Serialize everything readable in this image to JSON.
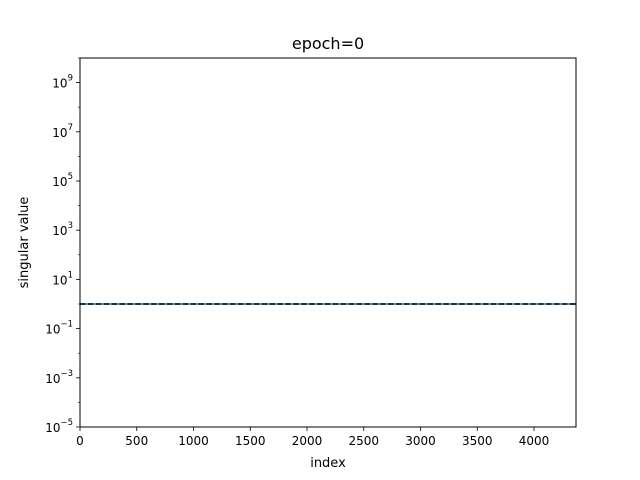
{
  "chart_data": {
    "type": "line",
    "title": "epoch=0",
    "xlabel": "index",
    "ylabel": "singular value",
    "xscale": "linear",
    "yscale": "log",
    "xlim": [
      0,
      4370
    ],
    "ylim": [
      1e-05,
      10000000000.0
    ],
    "grid": false,
    "x_ticks": [
      0,
      500,
      1000,
      1500,
      2000,
      2500,
      3000,
      3500,
      4000
    ],
    "x_tick_labels": [
      "0",
      "500",
      "1000",
      "1500",
      "2000",
      "2500",
      "3000",
      "3500",
      "4000"
    ],
    "y_ticks": [
      {
        "value": 1e-05,
        "base": "10",
        "exp": "−5"
      },
      {
        "value": 0.001,
        "base": "10",
        "exp": "−3"
      },
      {
        "value": 0.1,
        "base": "10",
        "exp": "−1"
      },
      {
        "value": 10.0,
        "base": "10",
        "exp": "1"
      },
      {
        "value": 1000.0,
        "base": "10",
        "exp": "3"
      },
      {
        "value": 100000.0,
        "base": "10",
        "exp": "5"
      },
      {
        "value": 10000000.0,
        "base": "10",
        "exp": "7"
      },
      {
        "value": 1000000000.0,
        "base": "10",
        "exp": "9"
      }
    ],
    "series": [
      {
        "color": "#1f77b4",
        "style": "solid",
        "x": [
          0,
          4370
        ],
        "y": [
          1,
          1
        ]
      },
      {
        "color": "#000000",
        "style": "dashed",
        "x": [
          0,
          4370
        ],
        "y": [
          1,
          1
        ]
      }
    ]
  }
}
